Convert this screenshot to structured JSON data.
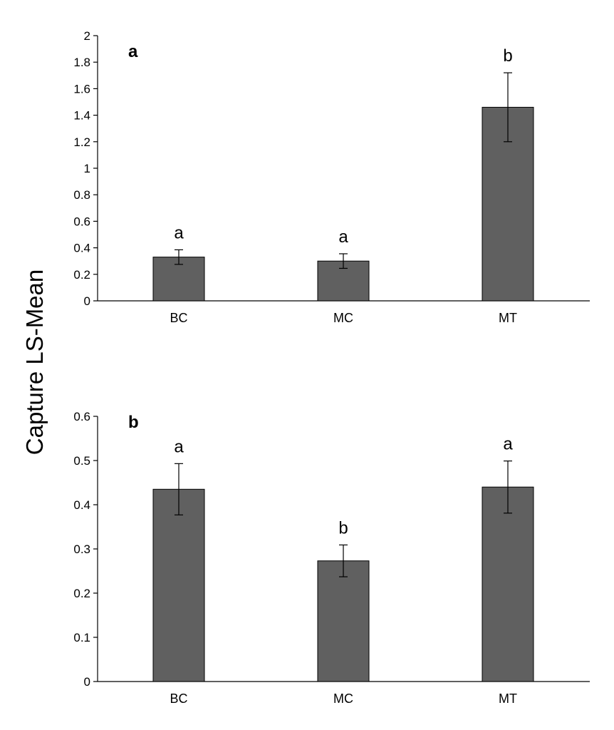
{
  "ylabel": "Capture LS-Mean",
  "chart_data": [
    {
      "type": "bar",
      "panel_label": "a",
      "categories": [
        "BC",
        "MC",
        "MT"
      ],
      "values": [
        0.33,
        0.3,
        1.46
      ],
      "error": [
        0.055,
        0.055,
        0.26
      ],
      "significance": [
        "a",
        "a",
        "b"
      ],
      "ylim": [
        0,
        2
      ],
      "yticks": [
        0,
        0.2,
        0.4,
        0.6,
        0.8,
        1,
        1.2,
        1.4,
        1.6,
        1.8,
        2
      ],
      "ytick_labels": [
        "0",
        "0.2",
        "0.4",
        "0.6",
        "0.8",
        "1",
        "1.2",
        "1.4",
        "1.6",
        "1.8",
        "2"
      ],
      "grid": false,
      "bar_color": "#606060"
    },
    {
      "type": "bar",
      "panel_label": "b",
      "categories": [
        "BC",
        "MC",
        "MT"
      ],
      "values": [
        0.435,
        0.273,
        0.44
      ],
      "error": [
        0.058,
        0.036,
        0.059
      ],
      "significance": [
        "a",
        "b",
        "a"
      ],
      "ylim": [
        0,
        0.6
      ],
      "yticks": [
        0,
        0.1,
        0.2,
        0.3,
        0.4,
        0.5,
        0.6
      ],
      "ytick_labels": [
        "0",
        "0.1",
        "0.2",
        "0.3",
        "0.4",
        "0.5",
        "0.6"
      ],
      "grid": false,
      "bar_color": "#606060"
    }
  ]
}
